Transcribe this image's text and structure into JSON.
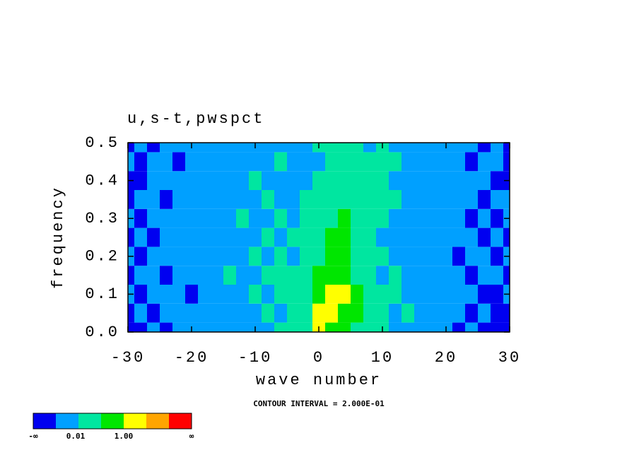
{
  "chart_data": {
    "type": "contour",
    "title": "u,s-t,pwspct",
    "x_label": "wave number",
    "y_label": "frequency",
    "note": "CONTOUR INTERVAL = 2.000E-01",
    "x": [
      -30,
      -28,
      -26,
      -24,
      -22,
      -20,
      -18,
      -16,
      -14,
      -12,
      -10,
      -8,
      -6,
      -4,
      -2,
      0,
      2,
      4,
      6,
      8,
      10,
      12,
      14,
      16,
      18,
      20,
      22,
      24,
      26,
      28,
      30
    ],
    "y": [
      0,
      0.05,
      0.1,
      0.15,
      0.2,
      0.25,
      0.3,
      0.35,
      0.4,
      0.45,
      0.5
    ],
    "z": [
      [
        0,
        0,
        1,
        0,
        1,
        1,
        1,
        1,
        1,
        1,
        1,
        1,
        2,
        2,
        2,
        4,
        3,
        3,
        2,
        2,
        2,
        1,
        1,
        1,
        1,
        1,
        0,
        1,
        0,
        0,
        0
      ],
      [
        0,
        1,
        0,
        1,
        1,
        1,
        1,
        1,
        1,
        1,
        1,
        2,
        1,
        2,
        2,
        4,
        4,
        3,
        3,
        2,
        2,
        1,
        2,
        1,
        1,
        1,
        1,
        0,
        1,
        0,
        0
      ],
      [
        1,
        0,
        1,
        1,
        1,
        0,
        1,
        1,
        1,
        1,
        2,
        1,
        2,
        2,
        2,
        3,
        4,
        4,
        3,
        2,
        2,
        2,
        1,
        1,
        1,
        1,
        1,
        1,
        0,
        0,
        1
      ],
      [
        0,
        1,
        1,
        0,
        1,
        1,
        1,
        1,
        2,
        1,
        1,
        2,
        2,
        2,
        2,
        3,
        3,
        3,
        2,
        2,
        1,
        2,
        1,
        1,
        1,
        1,
        1,
        0,
        1,
        1,
        0
      ],
      [
        1,
        0,
        1,
        1,
        1,
        1,
        1,
        1,
        1,
        1,
        2,
        1,
        2,
        1,
        2,
        2,
        3,
        3,
        2,
        2,
        2,
        1,
        1,
        1,
        1,
        1,
        0,
        1,
        1,
        0,
        1
      ],
      [
        0,
        1,
        0,
        1,
        1,
        1,
        1,
        1,
        1,
        1,
        1,
        2,
        1,
        2,
        2,
        2,
        3,
        3,
        2,
        2,
        1,
        1,
        1,
        1,
        1,
        1,
        1,
        1,
        0,
        1,
        0
      ],
      [
        1,
        0,
        1,
        1,
        1,
        1,
        1,
        1,
        1,
        2,
        1,
        1,
        2,
        1,
        2,
        2,
        2,
        3,
        2,
        2,
        2,
        1,
        1,
        1,
        1,
        1,
        1,
        0,
        1,
        0,
        1
      ],
      [
        0,
        1,
        1,
        0,
        1,
        1,
        1,
        1,
        1,
        1,
        1,
        2,
        1,
        1,
        2,
        2,
        2,
        2,
        2,
        2,
        2,
        2,
        1,
        1,
        1,
        1,
        1,
        1,
        0,
        1,
        1
      ],
      [
        0,
        0,
        1,
        1,
        1,
        1,
        1,
        1,
        1,
        1,
        2,
        1,
        1,
        1,
        1,
        2,
        2,
        2,
        2,
        2,
        2,
        1,
        1,
        1,
        1,
        1,
        1,
        1,
        1,
        0,
        0
      ],
      [
        1,
        0,
        1,
        1,
        0,
        1,
        1,
        1,
        1,
        1,
        1,
        1,
        2,
        1,
        1,
        1,
        2,
        2,
        2,
        2,
        2,
        2,
        1,
        1,
        1,
        1,
        1,
        0,
        1,
        1,
        0
      ],
      [
        0,
        1,
        0,
        1,
        1,
        1,
        1,
        1,
        1,
        1,
        1,
        1,
        1,
        1,
        1,
        2,
        2,
        2,
        2,
        1,
        2,
        1,
        1,
        1,
        1,
        1,
        1,
        1,
        0,
        1,
        0
      ]
    ],
    "colors": [
      "#0000f0",
      "#00a0ff",
      "#00e6a0",
      "#00e600",
      "#ffff00",
      "#ffa500",
      "#ff0000"
    ],
    "colorbar_labels": [
      "-∞",
      "0.01",
      "1.00",
      "∞"
    ],
    "xlim": [
      -30,
      30
    ],
    "ylim": [
      0,
      0.5
    ],
    "xticks": [
      -30,
      -20,
      -10,
      0,
      10,
      20,
      30
    ],
    "yticks": [
      {
        "value": 0,
        "label": "0.0"
      },
      {
        "value": 0.1,
        "label": "0.1"
      },
      {
        "value": 0.2,
        "label": "0.2"
      },
      {
        "value": 0.3,
        "label": "0.3"
      },
      {
        "value": 0.4,
        "label": "0.4"
      },
      {
        "value": 0.5,
        "label": "0.5"
      }
    ]
  }
}
